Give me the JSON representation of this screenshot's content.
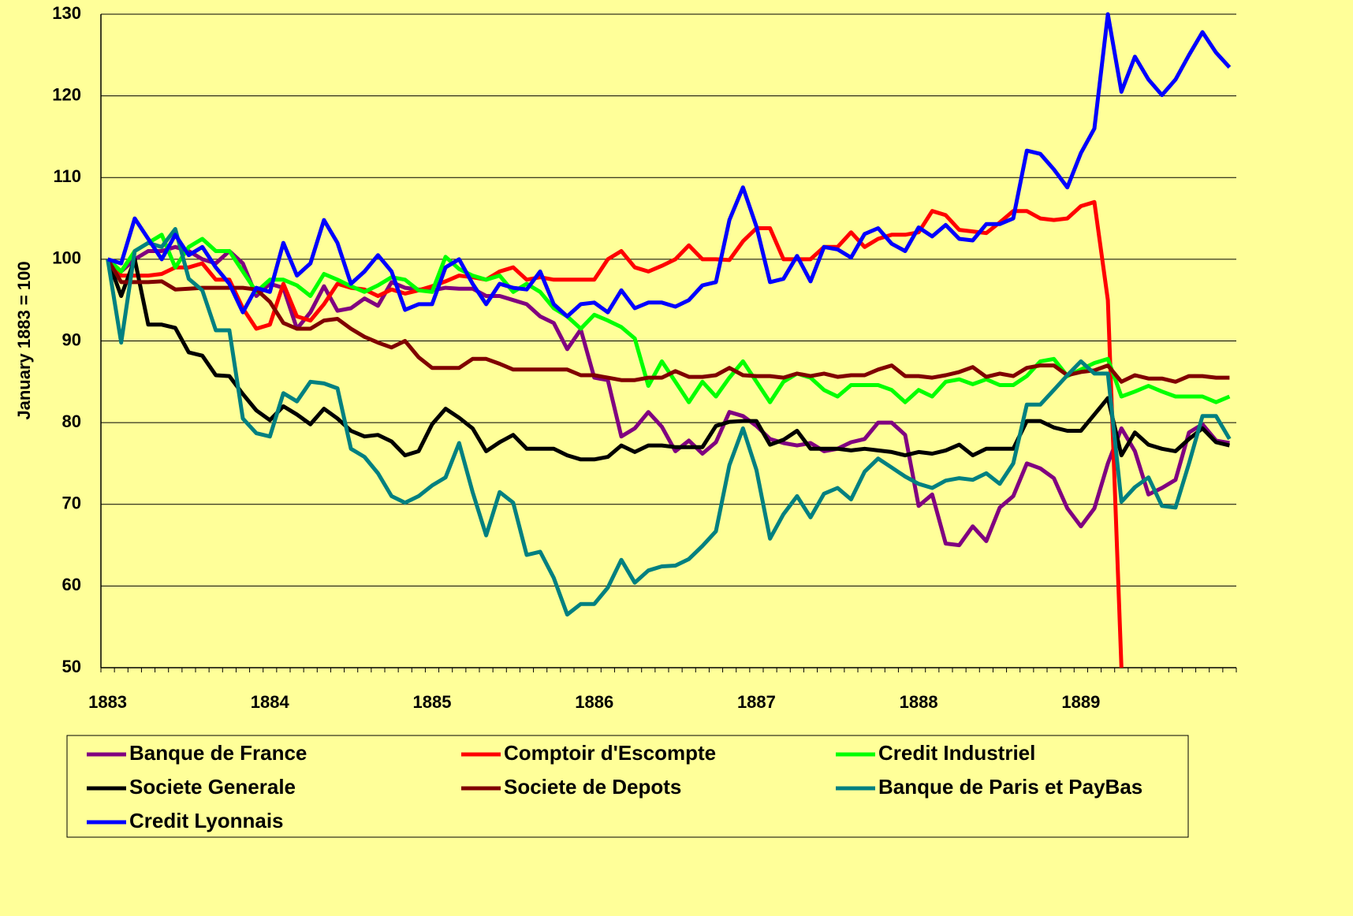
{
  "chart_data": {
    "type": "line",
    "y_label": "January 1883 = 100",
    "categories": [
      "1883",
      null,
      null,
      null,
      null,
      null,
      null,
      null,
      null,
      null,
      null,
      null,
      "1884",
      null,
      null,
      null,
      null,
      null,
      null,
      null,
      null,
      null,
      null,
      null,
      "1885",
      null,
      null,
      null,
      null,
      null,
      null,
      null,
      null,
      null,
      null,
      null,
      "1886",
      null,
      null,
      null,
      null,
      null,
      null,
      null,
      null,
      null,
      null,
      null,
      "1887",
      null,
      null,
      null,
      null,
      null,
      null,
      null,
      null,
      null,
      null,
      null,
      "1888",
      null,
      null,
      null,
      null,
      null,
      null,
      null,
      null,
      null,
      null,
      null,
      "1889",
      null,
      null,
      null,
      null,
      null,
      null,
      null,
      null,
      null,
      null,
      null
    ],
    "ylim": [
      50,
      130
    ],
    "yticks": [
      50,
      60,
      70,
      80,
      90,
      100,
      110,
      120,
      130
    ],
    "grid": true,
    "series": [
      {
        "name": "Banque de France",
        "color": "#800080",
        "values": [
          100,
          98.5,
          100,
          101,
          101,
          101.5,
          101,
          100,
          99.5,
          101,
          99.5,
          95.5,
          97,
          96.5,
          91.5,
          93.5,
          96.7,
          93.7,
          94,
          95.2,
          94.3,
          97.2,
          96.5,
          96.3,
          96.2,
          96.5,
          96.4,
          96.4,
          95.5,
          95.5,
          95,
          94.5,
          93,
          92.2,
          89,
          91.4,
          85.5,
          85.2,
          78.3,
          79.3,
          81.3,
          79.5,
          76.5,
          77.8,
          76.2,
          77.6,
          81.3,
          80.8,
          79.6,
          78,
          77.5,
          77.2,
          77.5,
          76.5,
          76.8,
          77.6,
          78,
          80,
          80,
          78.5,
          69.8,
          71.2,
          65.2,
          65,
          67.3,
          65.5,
          69.6,
          71,
          75,
          74.4,
          73.2,
          69.5,
          67.3,
          69.5,
          75,
          79.3,
          76.5,
          71.2,
          72,
          73,
          78.8,
          79.8,
          77.8,
          77.5
        ]
      },
      {
        "name": "Comptoir d'Escompte",
        "color": "#ff0000",
        "values": [
          100,
          98,
          98,
          98,
          98.2,
          99,
          99,
          99.5,
          97.5,
          97.5,
          94,
          91.5,
          92,
          97,
          93,
          92.5,
          94.5,
          97,
          96.5,
          96.3,
          95.5,
          96.3,
          95.8,
          96.2,
          96.7,
          97.3,
          98,
          97.8,
          97.5,
          98.5,
          99,
          97.5,
          97.8,
          97.5,
          97.5,
          97.5,
          97.5,
          100,
          101,
          99,
          98.5,
          99.2,
          100,
          101.7,
          100,
          100,
          99.9,
          102.2,
          103.8,
          103.8,
          100,
          100,
          100,
          101.5,
          101.5,
          103.3,
          101.5,
          102.5,
          103,
          103,
          103.3,
          105.9,
          105.4,
          103.6,
          103.4,
          103.2,
          104.5,
          105.9,
          105.9,
          105,
          104.8,
          105,
          106.5,
          107,
          95,
          50,
          null,
          null,
          null,
          null,
          null,
          null,
          null,
          null
        ]
      },
      {
        "name": "Credit Industriel",
        "color": "#00ff00",
        "values": [
          100,
          98.5,
          101,
          102,
          103,
          99,
          101.5,
          102.5,
          101,
          101,
          98.5,
          96,
          97.5,
          97.5,
          96.8,
          95.5,
          98.2,
          97.5,
          96.7,
          96,
          96.8,
          97.8,
          97.5,
          96.2,
          96,
          100.3,
          98.8,
          98,
          97.5,
          98,
          96,
          97,
          96,
          94,
          93,
          91.5,
          93.2,
          92.5,
          91.7,
          90.3,
          84.5,
          87.5,
          85,
          82.5,
          85,
          83.2,
          85.5,
          87.5,
          85,
          82.5,
          85,
          86,
          85.5,
          84,
          83.2,
          84.6,
          84.6,
          84.6,
          84,
          82.5,
          84,
          83.2,
          85,
          85.3,
          84.7,
          85.3,
          84.6,
          84.6,
          85.7,
          87.5,
          87.8,
          85.7,
          86.5,
          87.3,
          87.8,
          83.2,
          83.8,
          84.5,
          83.8,
          83.2,
          83.2,
          83.2,
          82.5,
          83.2
        ]
      },
      {
        "name": "Societe Generale",
        "color": "#000000",
        "values": [
          100,
          95.5,
          100,
          92,
          92,
          91.6,
          88.6,
          88.2,
          85.8,
          85.7,
          83.5,
          81.5,
          80.3,
          82,
          81,
          79.8,
          81.7,
          80.5,
          79,
          78.3,
          78.5,
          77.7,
          76,
          76.5,
          79.8,
          81.7,
          80.6,
          79.3,
          76.5,
          77.6,
          78.5,
          76.8,
          76.8,
          76.8,
          76,
          75.5,
          75.5,
          75.8,
          77.2,
          76.4,
          77.2,
          77.2,
          77,
          77,
          77,
          79.6,
          80.1,
          80.2,
          80.2,
          77.3,
          77.9,
          79,
          76.8,
          76.8,
          76.8,
          76.6,
          76.8,
          76.6,
          76.4,
          76,
          76.4,
          76.2,
          76.6,
          77.3,
          76,
          76.8,
          76.8,
          76.8,
          80.2,
          80.2,
          79.4,
          79,
          79,
          81,
          83,
          76,
          78.8,
          77.3,
          76.8,
          76.5,
          78,
          79.3,
          77.6,
          77.2
        ]
      },
      {
        "name": "Societe de Depots",
        "color": "#800000",
        "values": [
          100,
          97.2,
          97.2,
          97.2,
          97.3,
          96.3,
          96.4,
          96.5,
          96.5,
          96.5,
          96.5,
          96.3,
          94.8,
          92.2,
          91.5,
          91.5,
          92.5,
          92.7,
          91.5,
          90.5,
          89.8,
          89.2,
          90,
          88,
          86.7,
          86.7,
          86.7,
          87.8,
          87.8,
          87.2,
          86.5,
          86.5,
          86.5,
          86.5,
          86.5,
          85.8,
          85.8,
          85.5,
          85.2,
          85.2,
          85.5,
          85.5,
          86.3,
          85.6,
          85.6,
          85.8,
          86.7,
          85.8,
          85.7,
          85.7,
          85.5,
          86,
          85.7,
          86,
          85.6,
          85.8,
          85.8,
          86.5,
          87,
          85.7,
          85.7,
          85.5,
          85.8,
          86.2,
          86.8,
          85.6,
          86,
          85.7,
          86.7,
          87,
          87,
          85.8,
          86.2,
          86.4,
          87,
          85,
          85.8,
          85.4,
          85.4,
          85,
          85.7,
          85.7,
          85.5,
          85.5
        ]
      },
      {
        "name": "Banque de Paris et PayBas",
        "color": "#008080",
        "values": [
          100,
          89.8,
          101,
          102,
          101.5,
          103.7,
          97.6,
          96.2,
          91.3,
          91.3,
          80.5,
          78.7,
          78.3,
          83.6,
          82.6,
          85,
          84.8,
          84.2,
          76.8,
          75.8,
          73.8,
          71,
          70.2,
          71,
          72.3,
          73.3,
          77.5,
          71.5,
          66.2,
          71.5,
          70.2,
          63.8,
          64.2,
          61,
          56.5,
          57.8,
          57.8,
          59.8,
          63.2,
          60.4,
          61.9,
          62.4,
          62.5,
          63.3,
          64.9,
          66.7,
          74.8,
          79.3,
          74.2,
          65.8,
          68.8,
          71,
          68.4,
          71.3,
          72,
          70.6,
          74,
          75.6,
          74.5,
          73.4,
          72.5,
          72,
          72.9,
          73.2,
          73,
          73.8,
          72.5,
          75,
          82.2,
          82.2,
          84,
          85.8,
          87.5,
          86,
          86,
          70.3,
          72.1,
          73.3,
          69.8,
          69.6,
          75,
          80.8,
          80.8,
          78
        ]
      },
      {
        "name": "Credit Lyonnais",
        "color": "#0000ff",
        "values": [
          100,
          99.5,
          105,
          102.5,
          100,
          103,
          100.5,
          101.5,
          99,
          97,
          93.5,
          96.5,
          96,
          102,
          98,
          99.5,
          104.8,
          102,
          97,
          98.5,
          100.5,
          98.5,
          93.8,
          94.5,
          94.5,
          99,
          100,
          97,
          94.5,
          97,
          96.5,
          96.3,
          98.5,
          94.5,
          93,
          94.5,
          94.7,
          93.5,
          96.2,
          94,
          94.7,
          94.7,
          94.2,
          95,
          96.8,
          97.2,
          104.8,
          108.8,
          104,
          97.2,
          97.6,
          100.4,
          97.3,
          101.5,
          101.2,
          100.2,
          103.1,
          103.8,
          101.9,
          101,
          103.9,
          102.8,
          104.2,
          102.5,
          102.3,
          104.3,
          104.3,
          105,
          113.3,
          112.9,
          111,
          108.8,
          113,
          116,
          130,
          120.5,
          124.8,
          122,
          120.1,
          122,
          125,
          127.8,
          125.3,
          123.5
        ]
      }
    ]
  }
}
